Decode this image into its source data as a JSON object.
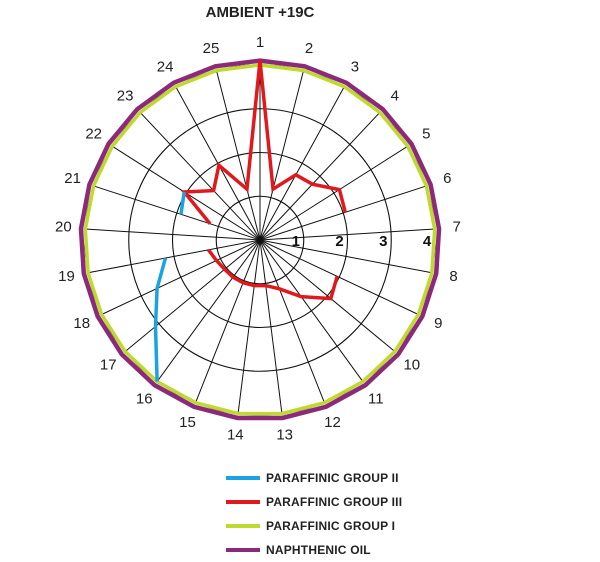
{
  "chart_data": {
    "type": "radar",
    "title": "AMBIENT +19C",
    "categories": [
      "1",
      "2",
      "3",
      "4",
      "5",
      "6",
      "7",
      "8",
      "9",
      "10",
      "11",
      "12",
      "13",
      "14",
      "15",
      "16",
      "17",
      "18",
      "19",
      "20",
      "21",
      "22",
      "23",
      "24",
      "25"
    ],
    "radial_ticks": [
      "1",
      "2",
      "3",
      "4"
    ],
    "rlim": [
      0,
      4
    ],
    "grid": true,
    "legend_position": "bottom",
    "series": [
      {
        "name": "PARAFFINIC GROUP II",
        "color": "#1aa3e0",
        "values": [
          null,
          null,
          null,
          null,
          null,
          null,
          null,
          null,
          null,
          null,
          null,
          null,
          null,
          null,
          null,
          4,
          3.1,
          2.6,
          2.2,
          null,
          1.9,
          2.05,
          null,
          null,
          null
        ]
      },
      {
        "name": "PARAFFINIC GROUP III",
        "color": "#e0191d",
        "values": [
          4.1,
          1.2,
          1.7,
          1.75,
          2.15,
          2.05,
          null,
          null,
          1.95,
          2.1,
          1.6,
          1.2,
          1.05,
          1.05,
          1.05,
          1.05,
          1.05,
          1.1,
          1.2,
          null,
          1.2,
          2.05,
          1.55,
          1.95,
          1.2
        ]
      },
      {
        "name": "PARAFFINIC GROUP I",
        "color": "#bfd92c",
        "values": [
          4,
          4,
          4,
          4,
          4,
          4,
          4,
          4,
          4,
          4,
          4,
          4,
          4,
          4,
          4,
          4,
          4,
          4,
          4,
          4,
          4,
          4,
          4,
          4,
          4
        ]
      },
      {
        "name": "NAPHTHENIC OIL",
        "color": "#8b2a7a",
        "values": [
          4.1,
          4.1,
          4.1,
          4.1,
          4.1,
          4.1,
          4.1,
          4.1,
          4.1,
          4.1,
          4.1,
          4.1,
          4.1,
          4.1,
          4.1,
          4.1,
          4.1,
          4.1,
          4.1,
          4.1,
          4.1,
          4.1,
          4.1,
          4.1,
          4.1
        ]
      }
    ]
  }
}
